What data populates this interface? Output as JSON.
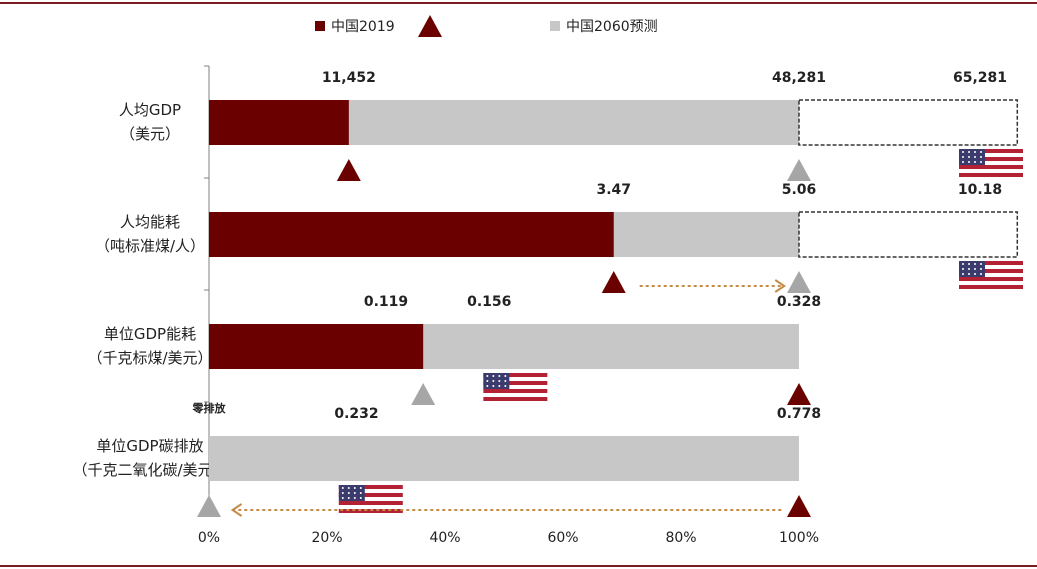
{
  "colors": {
    "frame": "#7a1c24",
    "china2019": "#6b0000",
    "china2060": "#c7c7c7",
    "arrow": "#c58b47",
    "axis": "#808080",
    "text": "#222222"
  },
  "legend": {
    "china2019": "中国2019",
    "china2060": "中国2060预测"
  },
  "chart_data": {
    "type": "bar",
    "orientation": "horizontal",
    "x_axis": {
      "ticks": [
        "0%",
        "20%",
        "40%",
        "60%",
        "80%",
        "100%"
      ],
      "min": 0,
      "max": 1
    },
    "categories": [
      {
        "line1": "人均GDP",
        "line2": "（美元）",
        "gray_end": 1.0,
        "red_end": 0.237,
        "outline_end": 1.37,
        "labels": [
          {
            "text": "11,452",
            "pos": 0.237
          },
          {
            "text": "48,281",
            "pos": 1.0
          },
          {
            "text": "65,281",
            "pos": 1.37
          }
        ],
        "tri_dark": 0.237,
        "tri_gray": 1.0,
        "flag_at": 1.37,
        "arrow": null
      },
      {
        "line1": "人均能耗",
        "line2": "（吨标准煤/人）",
        "gray_end": 1.0,
        "red_end": 0.686,
        "outline_end": 1.37,
        "labels": [
          {
            "text": "3.47",
            "pos": 0.686
          },
          {
            "text": "5.06",
            "pos": 1.0
          },
          {
            "text": "10.18",
            "pos": 1.37
          }
        ],
        "tri_dark": 0.686,
        "tri_gray": 1.0,
        "flag_at": 1.37,
        "arrow": {
          "from": 0.73,
          "to": 0.975
        }
      },
      {
        "line1": "单位GDP能耗",
        "line2": "（千克标煤/美元）",
        "gray_end": 1.0,
        "red_end": 0.363,
        "outline_end": null,
        "labels": [
          {
            "text": "0.119",
            "pos": 0.3
          },
          {
            "text": "0.156",
            "pos": 0.475
          },
          {
            "text": "0.328",
            "pos": 1.0
          }
        ],
        "tri_dark": 1.0,
        "tri_gray": 0.363,
        "flag_at": 0.465,
        "arrow": null
      },
      {
        "line1": "单位GDP碳排放",
        "line2": "（千克二氧化碳/美元）",
        "gray_end": 1.0,
        "red_end": 0,
        "outline_end": null,
        "labels": [
          {
            "text": "0.232",
            "pos": 0.25
          },
          {
            "text": "0.778",
            "pos": 1.0
          }
        ],
        "tri_dark": 1.0,
        "tri_gray": 0.0,
        "flag_at": 0.22,
        "arrow": {
          "from": 0.97,
          "to": 0.04
        },
        "zero_label": "零排放"
      }
    ]
  }
}
